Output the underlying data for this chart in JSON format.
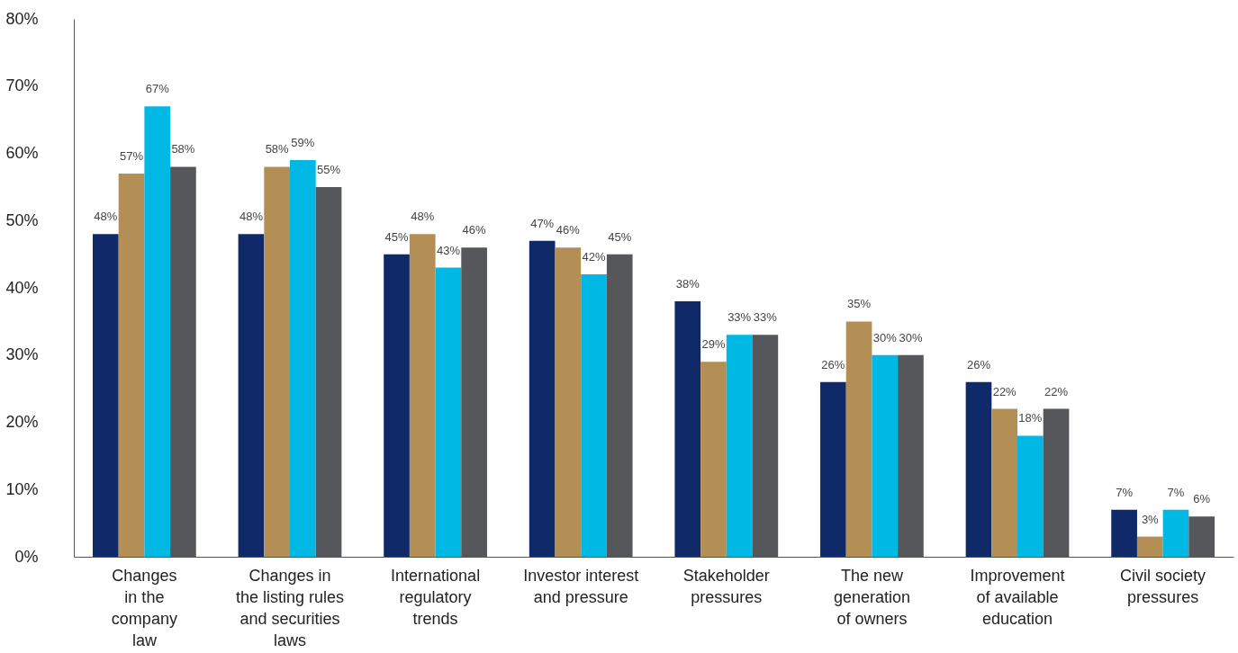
{
  "chart_data": {
    "type": "bar",
    "categories": [
      "Changes\nin the\ncompany\nlaw",
      "Changes in\nthe listing rules\nand securities\nlaws",
      "International\nregulatory\ntrends",
      "Investor interest\nand pressure",
      "Stakeholder\npressures",
      "The new\ngeneration\nof owners",
      "Improvement\nof available\neducation",
      "Civil society\npressures"
    ],
    "series": [
      {
        "color": "#0f2969",
        "values": [
          48,
          48,
          45,
          47,
          38,
          26,
          26,
          7
        ],
        "value_labels": [
          "48%",
          "48%",
          "45%",
          "47%",
          "38%",
          "26%",
          "26%",
          "7%"
        ]
      },
      {
        "color": "#b38f55",
        "values": [
          57,
          58,
          48,
          46,
          29,
          35,
          22,
          3
        ],
        "value_labels": [
          "57%",
          "58%",
          "48%",
          "46%",
          "29%",
          "35%",
          "22%",
          "3%"
        ]
      },
      {
        "color": "#00b8e4",
        "values": [
          67,
          59,
          43,
          42,
          33,
          30,
          18,
          7
        ],
        "value_labels": [
          "67%",
          "59%",
          "43%",
          "42%",
          "33%",
          "30%",
          "18%",
          "7%"
        ]
      },
      {
        "color": "#55575a",
        "values": [
          58,
          55,
          46,
          45,
          33,
          30,
          22,
          6
        ],
        "value_labels": [
          "58%",
          "55%",
          "46%",
          "45%",
          "33%",
          "30%",
          "22%",
          "6%"
        ]
      }
    ],
    "ylim": [
      0,
      80
    ],
    "yticks": [
      {
        "value": 0,
        "label": "0%"
      },
      {
        "value": 10,
        "label": "10%"
      },
      {
        "value": 20,
        "label": "20%"
      },
      {
        "value": 30,
        "label": "30%"
      },
      {
        "value": 40,
        "label": "40%"
      },
      {
        "value": 50,
        "label": "50%"
      },
      {
        "value": 60,
        "label": "60%"
      },
      {
        "value": 70,
        "label": "70%"
      },
      {
        "value": 80,
        "label": "80%"
      }
    ],
    "grid": false,
    "legend": false
  }
}
